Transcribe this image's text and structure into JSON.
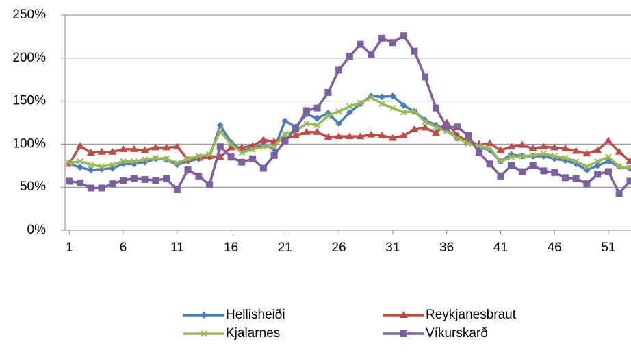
{
  "chart_data": {
    "type": "line",
    "x": [
      1,
      2,
      3,
      4,
      5,
      6,
      7,
      8,
      9,
      10,
      11,
      12,
      13,
      14,
      15,
      16,
      17,
      18,
      19,
      20,
      21,
      22,
      23,
      24,
      25,
      26,
      27,
      28,
      29,
      30,
      31,
      32,
      33,
      34,
      35,
      36,
      37,
      38,
      39,
      40,
      41,
      42,
      43,
      44,
      45,
      46,
      47,
      48,
      49,
      50,
      51,
      52,
      53
    ],
    "xlim": [
      0.6,
      53.1
    ],
    "xticks": [
      1,
      6,
      11,
      16,
      21,
      26,
      31,
      36,
      41,
      46,
      51
    ],
    "ylim": [
      0,
      250
    ],
    "yticks": [
      {
        "value": 0,
        "label": "0%"
      },
      {
        "value": 50,
        "label": "50%"
      },
      {
        "value": 100,
        "label": "100%"
      },
      {
        "value": 150,
        "label": "150%"
      },
      {
        "value": 200,
        "label": "200%"
      },
      {
        "value": 250,
        "label": "250%"
      }
    ],
    "grid": true,
    "legend": "bottom",
    "series": [
      {
        "name": "Hellisheiði",
        "color": "#4a7ebb",
        "marker": "diamond",
        "values": [
          77,
          73,
          70,
          71,
          72,
          77,
          77,
          79,
          83,
          82,
          76,
          80,
          83,
          85,
          122,
          102,
          93,
          95,
          100,
          94,
          127,
          120,
          135,
          130,
          136,
          124,
          137,
          147,
          156,
          155,
          156,
          145,
          138,
          128,
          122,
          117,
          107,
          103,
          97,
          93,
          80,
          88,
          86,
          86,
          86,
          83,
          81,
          77,
          70,
          75,
          80,
          74,
          72
        ]
      },
      {
        "name": "Reykjanesbraut",
        "color": "#be4b48",
        "marker": "triangle",
        "values": [
          77,
          98,
          90,
          91,
          91,
          94,
          94,
          93,
          96,
          96,
          97,
          82,
          84,
          86,
          85,
          96,
          96,
          98,
          105,
          103,
          106,
          110,
          114,
          114,
          108,
          109,
          109,
          109,
          111,
          110,
          107,
          110,
          117,
          119,
          113,
          125,
          110,
          103,
          100,
          101,
          93,
          97,
          99,
          95,
          97,
          96,
          95,
          92,
          89,
          93,
          104,
          91,
          80
        ]
      },
      {
        "name": "Kjalarnes",
        "color": "#98b954",
        "marker": "x",
        "values": [
          78,
          80,
          76,
          74,
          76,
          80,
          80,
          82,
          84,
          83,
          78,
          83,
          86,
          88,
          115,
          100,
          90,
          94,
          97,
          97,
          112,
          115,
          124,
          122,
          133,
          138,
          144,
          148,
          154,
          147,
          142,
          137,
          138,
          126,
          120,
          115,
          107,
          101,
          98,
          95,
          80,
          85,
          86,
          87,
          89,
          86,
          84,
          80,
          74,
          80,
          85,
          74,
          73
        ]
      },
      {
        "name": "Víkurskarð",
        "color": "#7d5fa0",
        "marker": "square",
        "values": [
          57,
          55,
          49,
          49,
          54,
          58,
          60,
          59,
          58,
          60,
          47,
          70,
          63,
          53,
          97,
          85,
          79,
          83,
          72,
          87,
          104,
          118,
          139,
          142,
          160,
          186,
          202,
          216,
          204,
          223,
          218,
          226,
          208,
          178,
          142,
          120,
          120,
          110,
          90,
          77,
          63,
          75,
          68,
          75,
          69,
          67,
          61,
          60,
          54,
          65,
          68,
          43,
          57
        ]
      }
    ]
  }
}
